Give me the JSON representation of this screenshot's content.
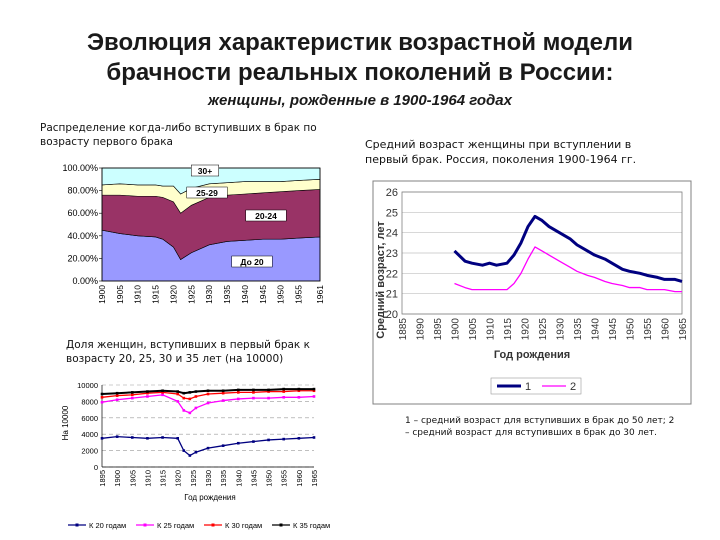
{
  "header": {
    "title_line1": "Эволюция характеристик возрастной модели",
    "title_line2": "брачности реальных поколений в России:",
    "subtitle": "женщины, рожденные  в 1900-1964 годах"
  },
  "captions": {
    "chart1": "Распределение когда-либо вступивших в брак по возрасту первого брака",
    "chart2": "Средний возраст женщины при вступлении в первый брак. Россия, поколения 1900-1964 гг.",
    "chart3": "Доля женщин, вступивших в первый брак к возрасту 20, 25, 30 и 35 лет (на 10000)",
    "chart2_note": "1 – средний возраст для вступивших в брак до 50 лет; 2 – средний возраст для вступивших в брак до 30 лет."
  },
  "colors": {
    "under20": "#9999ff",
    "age20_24": "#993366",
    "age25_29": "#ffffcc",
    "age30plus": "#ccffff",
    "series1": "#000080",
    "series2": "#ff00ff",
    "k20": "#000080",
    "k25": "#ff00ff",
    "k30": "#ff0000",
    "k35": "#000000"
  },
  "chart_data": [
    {
      "type": "area",
      "stacked": true,
      "percent": true,
      "x": [
        1900,
        1905,
        1910,
        1915,
        1917,
        1920,
        1922,
        1925,
        1930,
        1935,
        1940,
        1945,
        1950,
        1955,
        1961
      ],
      "series": [
        {
          "name": "До 20",
          "values": [
            45,
            42,
            40,
            39,
            37,
            30,
            19,
            25,
            32,
            35,
            36,
            37,
            37,
            38,
            39
          ]
        },
        {
          "name": "20-24",
          "values": [
            31,
            34,
            35,
            36,
            37,
            40,
            41,
            42,
            42,
            41,
            41,
            41,
            42,
            42,
            42
          ]
        },
        {
          "name": "25-29",
          "values": [
            9,
            10,
            10,
            10,
            10,
            14,
            17,
            15,
            12,
            11,
            11,
            10,
            9,
            9,
            9
          ]
        },
        {
          "name": "30+",
          "values": [
            15,
            14,
            15,
            15,
            16,
            16,
            23,
            18,
            14,
            13,
            12,
            12,
            12,
            11,
            10
          ]
        }
      ],
      "x_ticks": [
        "1900",
        "1905",
        "1910",
        "1915",
        "1920",
        "1925",
        "1930",
        "1935",
        "1940",
        "1945",
        "1950",
        "1955",
        "1961"
      ],
      "y_ticks": [
        "0.00%",
        "20.00%",
        "40.00%",
        "60.00%",
        "80.00%",
        "100.00%"
      ],
      "ylim": [
        0,
        100
      ]
    },
    {
      "type": "line",
      "x": [
        1900,
        1903,
        1905,
        1908,
        1910,
        1912,
        1915,
        1917,
        1919,
        1921,
        1923,
        1925,
        1927,
        1930,
        1933,
        1935,
        1938,
        1940,
        1943,
        1945,
        1948,
        1950,
        1953,
        1955,
        1958,
        1960,
        1963,
        1965
      ],
      "series": [
        {
          "name": "1",
          "values": [
            23.1,
            22.6,
            22.5,
            22.4,
            22.5,
            22.4,
            22.5,
            22.9,
            23.5,
            24.3,
            24.8,
            24.6,
            24.3,
            24.0,
            23.7,
            23.4,
            23.1,
            22.9,
            22.7,
            22.5,
            22.2,
            22.1,
            22.0,
            21.9,
            21.8,
            21.7,
            21.7,
            21.6
          ]
        },
        {
          "name": "2",
          "values": [
            21.5,
            21.3,
            21.2,
            21.2,
            21.2,
            21.2,
            21.2,
            21.5,
            22.0,
            22.7,
            23.3,
            23.1,
            22.9,
            22.6,
            22.3,
            22.1,
            21.9,
            21.8,
            21.6,
            21.5,
            21.4,
            21.3,
            21.3,
            21.2,
            21.2,
            21.2,
            21.1,
            21.1
          ]
        }
      ],
      "x_ticks": [
        "1885",
        "1890",
        "1895",
        "1900",
        "1905",
        "1910",
        "1915",
        "1920",
        "1925",
        "1930",
        "1935",
        "1940",
        "1945",
        "1950",
        "1955",
        "1960",
        "1965"
      ],
      "y_ticks": [
        "20",
        "21",
        "22",
        "23",
        "24",
        "25",
        "26"
      ],
      "xlabel": "Год рождения",
      "ylabel": "Средний возраст, лет",
      "xlim": [
        1885,
        1965
      ],
      "ylim": [
        20,
        26
      ]
    },
    {
      "type": "line",
      "x": [
        1895,
        1900,
        1905,
        1910,
        1915,
        1920,
        1922,
        1924,
        1926,
        1930,
        1935,
        1940,
        1945,
        1950,
        1955,
        1960,
        1965
      ],
      "series": [
        {
          "name": "К 20 годам",
          "values": [
            3500,
            3700,
            3600,
            3500,
            3600,
            3500,
            2000,
            1400,
            1800,
            2300,
            2600,
            2900,
            3100,
            3300,
            3400,
            3500,
            3600
          ]
        },
        {
          "name": "К 25 годам",
          "values": [
            7900,
            8200,
            8400,
            8600,
            8800,
            8000,
            6900,
            6600,
            7200,
            7800,
            8100,
            8300,
            8400,
            8400,
            8500,
            8500,
            8600
          ]
        },
        {
          "name": "К 30 годам",
          "values": [
            8500,
            8700,
            8800,
            9000,
            9100,
            8900,
            8400,
            8300,
            8600,
            8900,
            9000,
            9100,
            9100,
            9200,
            9200,
            9300,
            9300
          ]
        },
        {
          "name": "К 35 годам",
          "values": [
            8900,
            9000,
            9100,
            9200,
            9300,
            9200,
            9000,
            9100,
            9200,
            9300,
            9300,
            9400,
            9400,
            9400,
            9500,
            9500,
            9500
          ]
        }
      ],
      "x_ticks": [
        "1895",
        "1900",
        "1905",
        "1910",
        "1915",
        "1920",
        "1925",
        "1930",
        "1935",
        "1940",
        "1945",
        "1950",
        "1955",
        "1960",
        "1965"
      ],
      "y_ticks": [
        "0",
        "2000",
        "4000",
        "6000",
        "8000",
        "10000"
      ],
      "xlabel": "Год рождения",
      "ylabel": "На 10000",
      "ylim": [
        0,
        10000
      ]
    }
  ]
}
